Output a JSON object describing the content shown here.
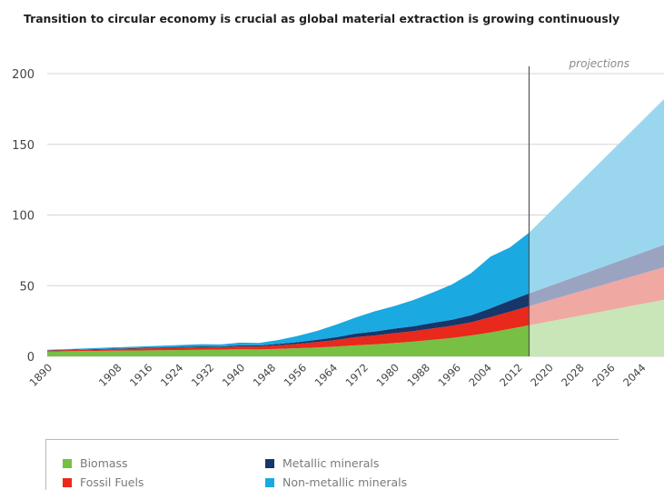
{
  "colors": {
    "biomass": "#77c043",
    "fossil_fuels": "#e8291c",
    "metallic_minerals": "#173669",
    "non_metallic_minerals": "#1aa9e0",
    "biomass_projection": "#c8e6b7",
    "fossil_fuels_projection": "#f0a8a2",
    "metallic_minerals_projection": "#9aa4c1",
    "non_metallic_minerals_projection": "#9ad7ef",
    "gridline": "#d4d4d4",
    "divider": "#555555"
  },
  "chart_data": {
    "type": "area",
    "stacked": true,
    "title": "Transition to circular economy is crucial as global material extraction is growing continuously",
    "xlabel": "",
    "ylabel": "",
    "xlim": [
      1890,
      2050
    ],
    "ylim": [
      0,
      200
    ],
    "grid": true,
    "y_ticks": [
      0,
      50,
      100,
      150,
      200
    ],
    "x_ticks": [
      1890,
      1908,
      1916,
      1924,
      1932,
      1940,
      1948,
      1956,
      1964,
      1972,
      1980,
      1988,
      1996,
      2004,
      2012,
      2020,
      2028,
      2036,
      2044
    ],
    "projection_start": 2015,
    "projection_label": "projections",
    "legend_position": "bottom",
    "x": [
      1890,
      1900,
      1910,
      1920,
      1930,
      1935,
      1940,
      1945,
      1950,
      1955,
      1960,
      1965,
      1970,
      1975,
      1980,
      1985,
      1990,
      1995,
      2000,
      2005,
      2010,
      2015,
      2050
    ],
    "series": [
      {
        "name": "Biomass",
        "values": [
          3.5,
          3.8,
          4.1,
          4.4,
          4.7,
          4.8,
          5.0,
          4.9,
          5.3,
          5.8,
          6.3,
          7.0,
          7.8,
          8.5,
          9.4,
          10.5,
          11.8,
          13.0,
          14.8,
          16.9,
          19.4,
          22.0,
          40.0
        ]
      },
      {
        "name": "Fossil Fuels",
        "values": [
          0.6,
          0.9,
          1.2,
          1.5,
          1.8,
          1.7,
          2.0,
          2.1,
          2.5,
          3.0,
          3.8,
          4.6,
          5.8,
          6.3,
          7.0,
          7.4,
          8.0,
          8.6,
          9.3,
          10.8,
          12.2,
          13.5,
          23.0
        ]
      },
      {
        "name": "Metallic minerals",
        "values": [
          0.2,
          0.3,
          0.4,
          0.5,
          0.6,
          0.5,
          0.8,
          0.7,
          1.0,
          1.2,
          1.6,
          2.0,
          2.5,
          2.8,
          3.2,
          3.4,
          3.9,
          4.3,
          5.0,
          6.3,
          7.8,
          9.0,
          16.0
        ]
      },
      {
        "name": "Non-metallic minerals",
        "values": [
          0.4,
          0.6,
          0.9,
          1.1,
          1.5,
          1.4,
          1.9,
          1.8,
          2.8,
          4.5,
          6.3,
          8.9,
          11.4,
          14.3,
          15.9,
          18.6,
          21.5,
          25.0,
          29.8,
          36.6,
          37.6,
          43.0,
          103.0
        ]
      }
    ]
  }
}
